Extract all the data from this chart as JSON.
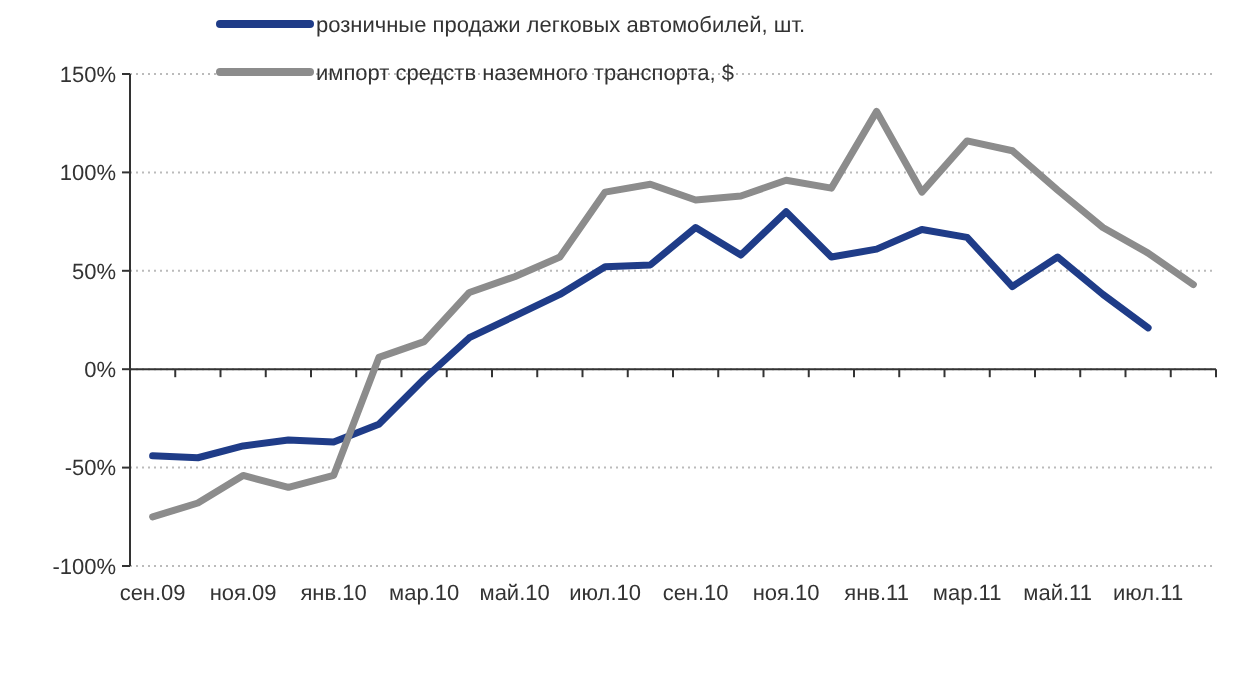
{
  "chart_data": {
    "type": "line",
    "categories": [
      "сен.09",
      null,
      "ноя.09",
      null,
      "янв.10",
      null,
      "мар.10",
      null,
      "май.10",
      null,
      "июл.10",
      null,
      "сен.10",
      null,
      "ноя.10",
      null,
      "янв.11",
      null,
      "мар.11",
      null,
      "май.11",
      null,
      "июл.11",
      null
    ],
    "series": [
      {
        "name": "розничные продажи легковых автомобилей, шт.",
        "color": "#1f3c88",
        "values": [
          -44,
          -45,
          -39,
          -36,
          -37,
          -28,
          -5,
          16,
          27,
          38,
          52,
          53,
          72,
          58,
          80,
          57,
          61,
          71,
          67,
          42,
          57,
          38,
          21,
          null
        ]
      },
      {
        "name": "импорт средств наземного транспорта, $",
        "color": "#8c8c8c",
        "values": [
          -75,
          -68,
          -54,
          -60,
          -54,
          6,
          14,
          39,
          47,
          57,
          90,
          94,
          86,
          88,
          96,
          92,
          131,
          90,
          116,
          111,
          91,
          72,
          59,
          43
        ]
      }
    ],
    "ylim": [
      -100,
      150
    ],
    "yticks": [
      {
        "value": -100,
        "label": "-100%"
      },
      {
        "value": -50,
        "label": "-50%"
      },
      {
        "value": 0,
        "label": "0%"
      },
      {
        "value": 50,
        "label": "50%"
      },
      {
        "value": 100,
        "label": "100%"
      },
      {
        "value": 150,
        "label": "150%"
      }
    ],
    "grid": "y",
    "legend": "top",
    "marker": "none",
    "line_style": "solid"
  }
}
